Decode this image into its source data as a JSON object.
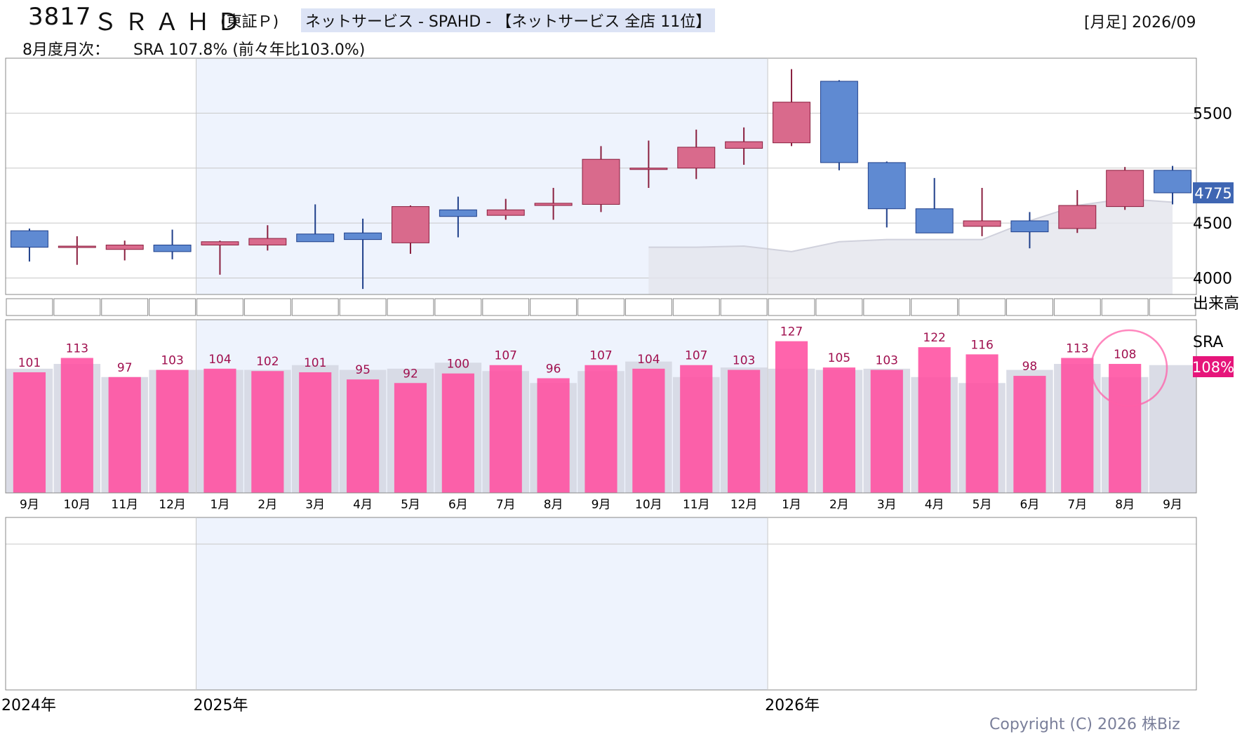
{
  "header": {
    "code": "3817",
    "name": "ＳＲＡＨＤ",
    "market": "(東証Ｐ)",
    "industry": "ネットサービス - SPAHD - 【ネットサービス 全店 11位】",
    "period": "[月足] 2026/09",
    "monthly_label": "8月度月次：",
    "monthly_value": "SRA 107.8% (前々年比103.0%)"
  },
  "copyright": "Copyright (C) 2026 株Biz",
  "colors": {
    "up_fill": "#d96a8c",
    "up_edge": "#8a1f3f",
    "down_fill": "#5f8ad2",
    "down_edge": "#1f3f8a",
    "sra_bar": "#ff4fa0",
    "sra_label": "#a0104f",
    "prior_bar": "#d4d6e2",
    "band": "#eef3fd",
    "price_badge": "#3f66b3",
    "sra_badge": "#e6157a"
  },
  "chart_data": [
    {
      "type": "candlestick",
      "ylim": [
        3850,
        6000
      ],
      "yticks": [
        "4000",
        "4500",
        "5500"
      ],
      "last_price_label": "4775",
      "months": [
        "9月",
        "10月",
        "11月",
        "12月",
        "1月",
        "2月",
        "3月",
        "4月",
        "5月",
        "6月",
        "7月",
        "8月",
        "9月",
        "10月",
        "11月",
        "12月",
        "1月",
        "2月",
        "3月",
        "4月",
        "5月",
        "6月",
        "7月",
        "8月",
        "9月"
      ],
      "candles": [
        {
          "o": 4430,
          "h": 4450,
          "l": 4150,
          "c": 4280
        },
        {
          "o": 4280,
          "h": 4380,
          "l": 4120,
          "c": 4290
        },
        {
          "o": 4260,
          "h": 4340,
          "l": 4160,
          "c": 4300
        },
        {
          "o": 4300,
          "h": 4440,
          "l": 4170,
          "c": 4240
        },
        {
          "o": 4300,
          "h": 4340,
          "l": 4030,
          "c": 4330
        },
        {
          "o": 4300,
          "h": 4480,
          "l": 4250,
          "c": 4360
        },
        {
          "o": 4400,
          "h": 4670,
          "l": 4330,
          "c": 4330
        },
        {
          "o": 4410,
          "h": 4540,
          "l": 3900,
          "c": 4350
        },
        {
          "o": 4320,
          "h": 4660,
          "l": 4220,
          "c": 4650
        },
        {
          "o": 4620,
          "h": 4740,
          "l": 4370,
          "c": 4560
        },
        {
          "o": 4570,
          "h": 4720,
          "l": 4530,
          "c": 4620
        },
        {
          "o": 4660,
          "h": 4820,
          "l": 4530,
          "c": 4680
        },
        {
          "o": 4670,
          "h": 5200,
          "l": 4600,
          "c": 5080
        },
        {
          "o": 4990,
          "h": 5250,
          "l": 4820,
          "c": 5000
        },
        {
          "o": 5000,
          "h": 5350,
          "l": 4900,
          "c": 5190
        },
        {
          "o": 5180,
          "h": 5370,
          "l": 5030,
          "c": 5240
        },
        {
          "o": 5230,
          "h": 5900,
          "l": 5200,
          "c": 5600
        },
        {
          "o": 5790,
          "h": 5800,
          "l": 4980,
          "c": 5050
        },
        {
          "o": 5050,
          "h": 5060,
          "l": 4460,
          "c": 4630
        },
        {
          "o": 4630,
          "h": 4910,
          "l": 4420,
          "c": 4410
        },
        {
          "o": 4470,
          "h": 4820,
          "l": 4380,
          "c": 4520
        },
        {
          "o": 4520,
          "h": 4600,
          "l": 4270,
          "c": 4420
        },
        {
          "o": 4450,
          "h": 4800,
          "l": 4410,
          "c": 4660
        },
        {
          "o": 4650,
          "h": 5010,
          "l": 4620,
          "c": 4980
        },
        {
          "o": 4980,
          "h": 5020,
          "l": 4670,
          "c": 4775
        }
      ],
      "moving_average": [
        null,
        null,
        null,
        null,
        null,
        null,
        null,
        null,
        null,
        null,
        null,
        null,
        null,
        4280,
        4280,
        4290,
        4240,
        4330,
        4350,
        4350,
        4350,
        4520,
        4660,
        4720,
        4690
      ]
    },
    {
      "type": "bar",
      "title": "SRA",
      "latest_label": "108%",
      "values": [
        101,
        113,
        97,
        103,
        104,
        102,
        101,
        95,
        92,
        100,
        107,
        96,
        107,
        104,
        107,
        103,
        127,
        105,
        103,
        122,
        116,
        98,
        113,
        108,
        null
      ],
      "prior_values": [
        104,
        108,
        97,
        103,
        103,
        103,
        107,
        103,
        104,
        109,
        102,
        92,
        102,
        110,
        97,
        105,
        104,
        103,
        104,
        97,
        92,
        103,
        108,
        97,
        107
      ],
      "label_values": [
        "101",
        "113",
        "97",
        "103",
        "104",
        "102",
        "101",
        "95",
        "92",
        "100",
        "107",
        "96",
        "107",
        "104",
        "107",
        "103",
        "127",
        "105",
        "103",
        "122",
        "116",
        "98",
        "113",
        "108",
        ""
      ]
    }
  ],
  "volume": {
    "label": "出来高"
  },
  "years": [
    "2024年",
    "2025年",
    "2026年"
  ]
}
